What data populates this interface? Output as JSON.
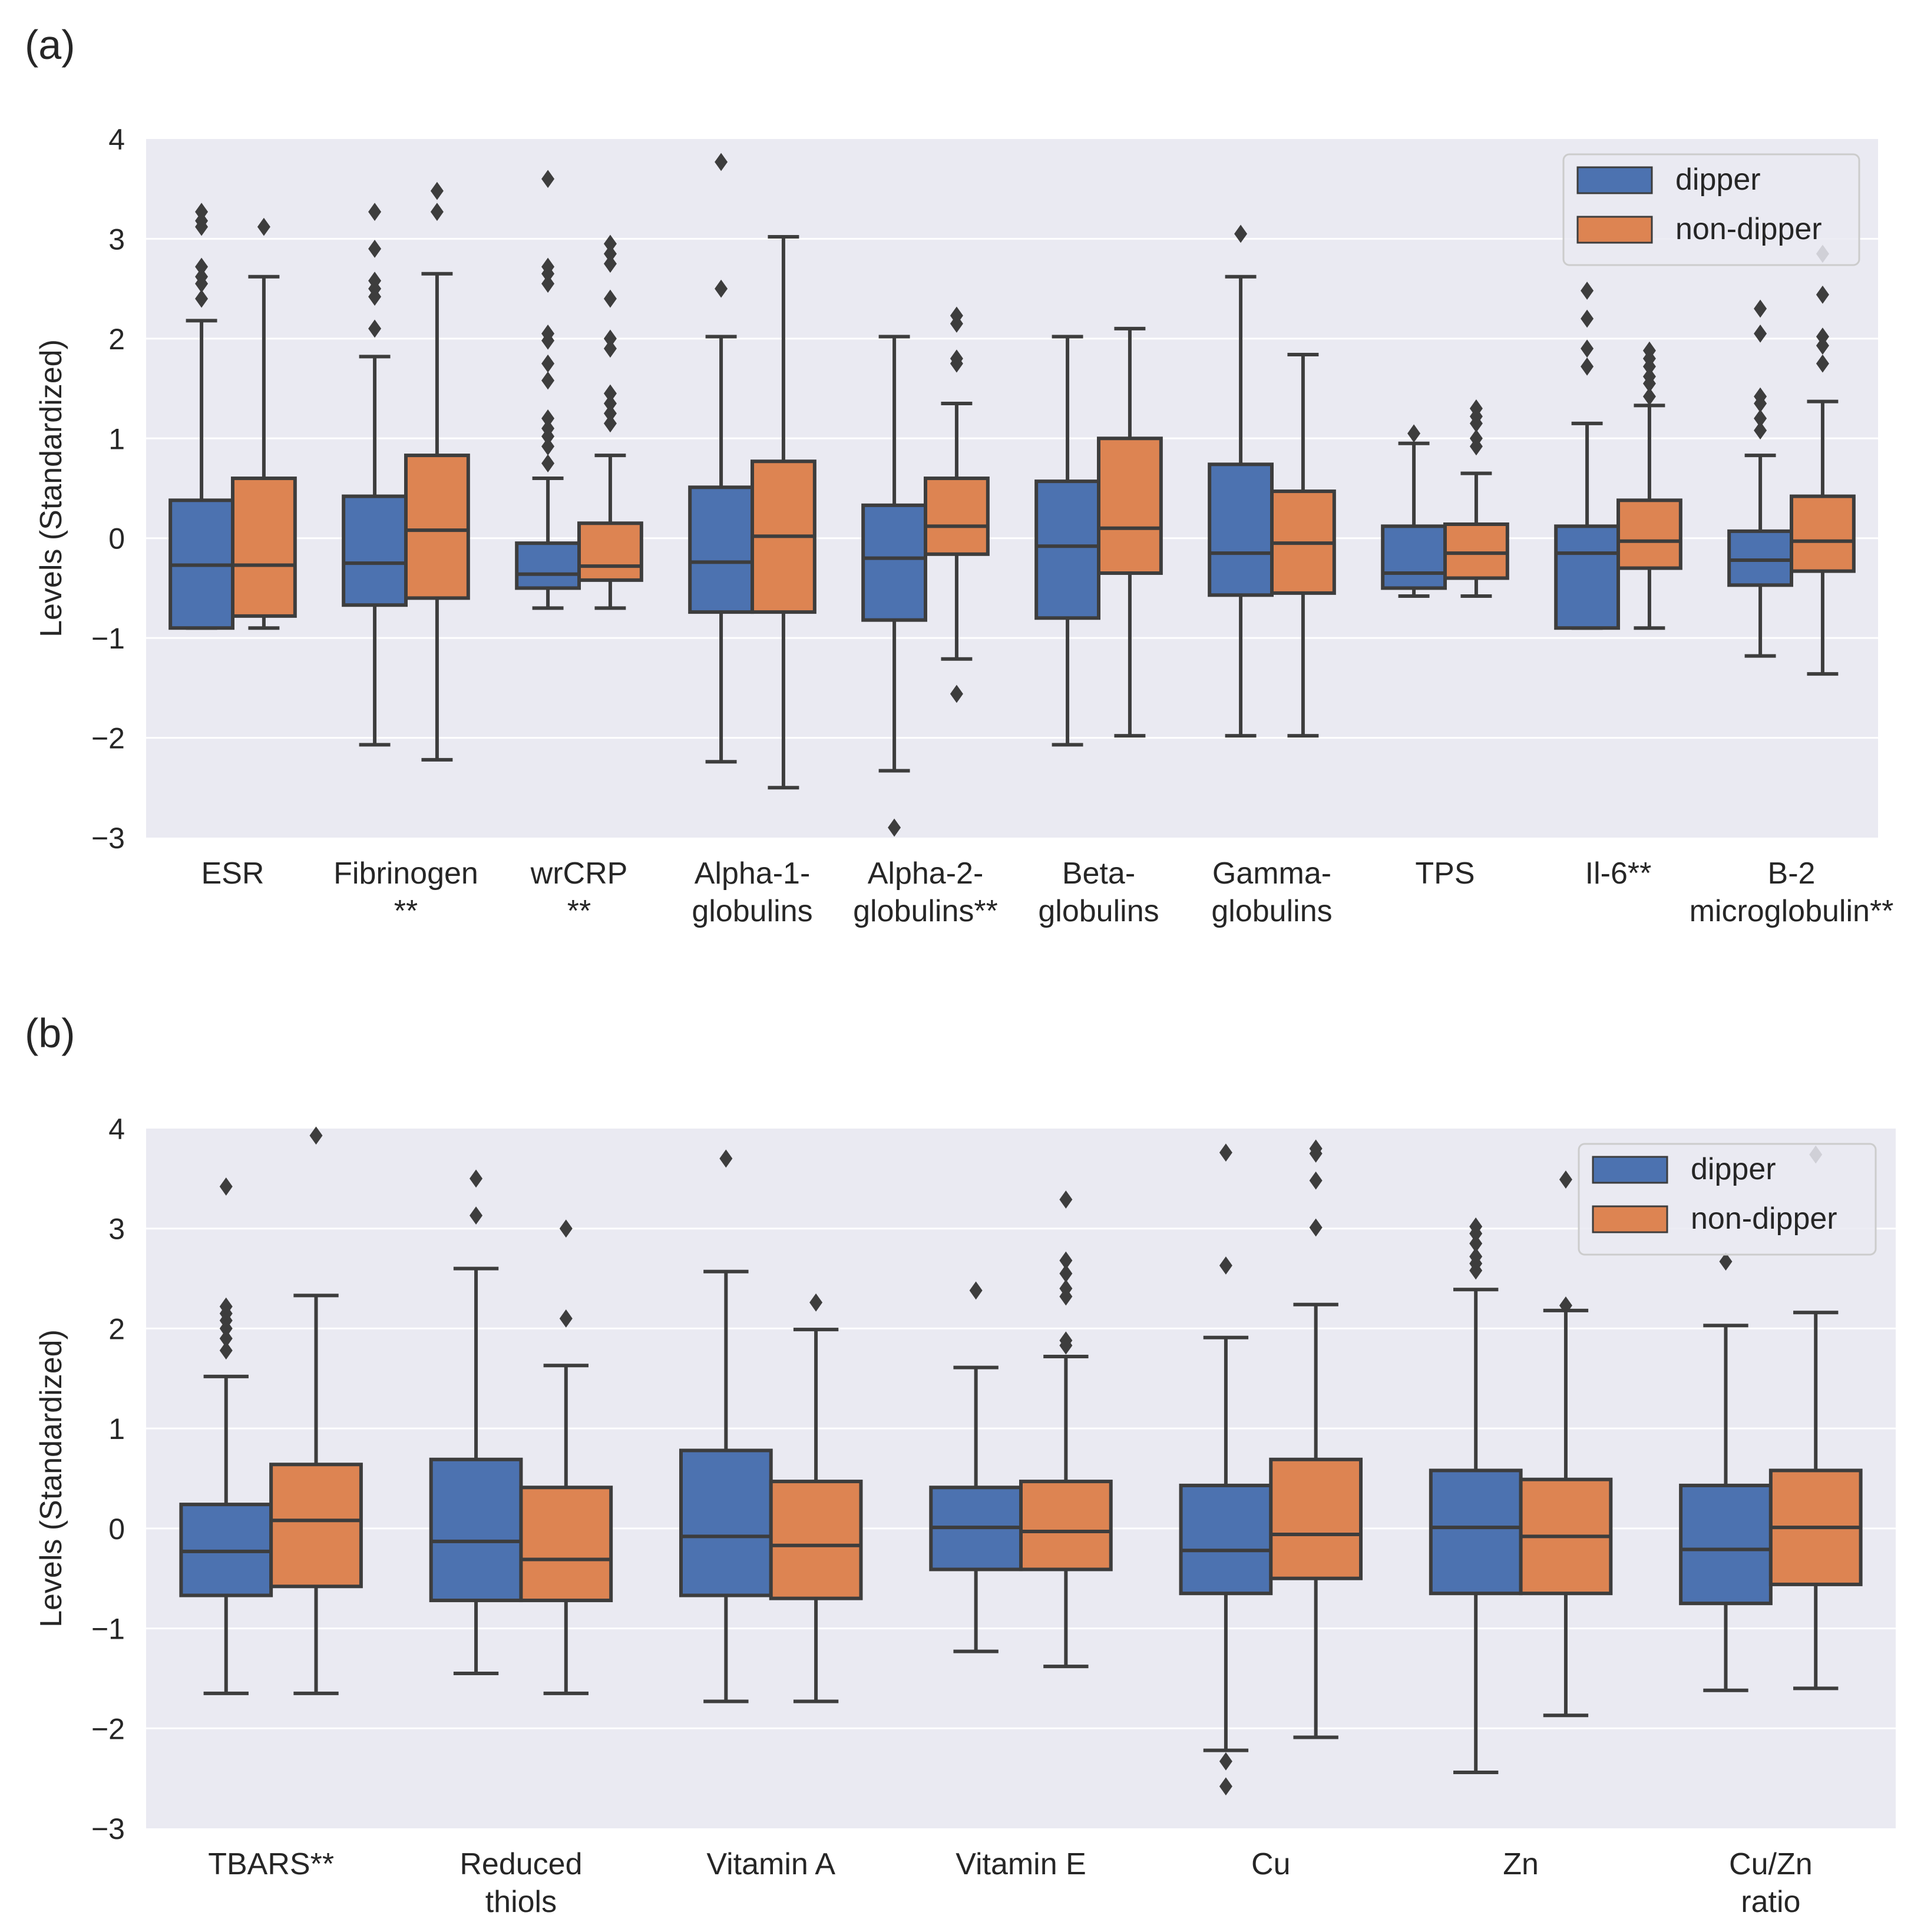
{
  "chart_data": [
    {
      "panel_label": "(a)",
      "type": "box",
      "ylabel": "Levels (Standardized)",
      "ylim": [
        -3,
        4
      ],
      "yticks": [
        4,
        3,
        2,
        1,
        0,
        -1,
        -2,
        -3
      ],
      "ytick_labels": [
        "4",
        "3",
        "2",
        "1",
        "0",
        "−1",
        "−2",
        "−3"
      ],
      "grid": true,
      "legend_position": "top-right",
      "legend": [
        {
          "label": "dipper",
          "color": "#4c72b0"
        },
        {
          "label": "non-dipper",
          "color": "#dd8452"
        }
      ],
      "categories": [
        {
          "lines": [
            "ESR"
          ],
          "dipper": {
            "q1": -0.9,
            "median": -0.27,
            "q3": 0.38,
            "whislo": -0.9,
            "whishi": 2.18,
            "fliers": [
              3.27,
              3.18,
              3.12,
              2.72,
              2.62,
              2.55,
              2.4
            ]
          },
          "non_dipper": {
            "q1": -0.78,
            "median": -0.27,
            "q3": 0.6,
            "whislo": -0.9,
            "whishi": 2.62,
            "fliers": [
              3.12
            ]
          }
        },
        {
          "lines": [
            "Fibrinogen",
            "**"
          ],
          "dipper": {
            "q1": -0.67,
            "median": -0.25,
            "q3": 0.42,
            "whislo": -2.07,
            "whishi": 1.82,
            "fliers": [
              3.27,
              2.9,
              2.58,
              2.5,
              2.42,
              2.1
            ]
          },
          "non_dipper": {
            "q1": -0.6,
            "median": 0.08,
            "q3": 0.83,
            "whislo": -2.22,
            "whishi": 2.65,
            "fliers": [
              3.48,
              3.27
            ]
          }
        },
        {
          "lines": [
            "wrCRP",
            "**"
          ],
          "dipper": {
            "q1": -0.5,
            "median": -0.36,
            "q3": -0.05,
            "whislo": -0.7,
            "whishi": 0.6,
            "fliers": [
              3.6,
              2.72,
              2.65,
              2.55,
              2.05,
              1.98,
              1.75,
              1.58,
              1.2,
              1.1,
              1.02,
              0.92,
              0.75
            ]
          },
          "non_dipper": {
            "q1": -0.42,
            "median": -0.28,
            "q3": 0.15,
            "whislo": -0.7,
            "whishi": 0.83,
            "fliers": [
              2.95,
              2.85,
              2.75,
              2.4,
              2.0,
              1.9,
              1.45,
              1.35,
              1.25,
              1.15
            ]
          }
        },
        {
          "lines": [
            "Alpha-1-",
            "globulins"
          ],
          "dipper": {
            "q1": -0.74,
            "median": -0.24,
            "q3": 0.51,
            "whislo": -2.24,
            "whishi": 2.02,
            "fliers": [
              3.77,
              2.5
            ]
          },
          "non_dipper": {
            "q1": -0.74,
            "median": 0.02,
            "q3": 0.77,
            "whislo": -2.5,
            "whishi": 3.02,
            "fliers": []
          }
        },
        {
          "lines": [
            "Alpha-2-",
            "globulins**"
          ],
          "dipper": {
            "q1": -0.82,
            "median": -0.2,
            "q3": 0.33,
            "whislo": -2.33,
            "whishi": 2.02,
            "fliers": [
              -2.9
            ]
          },
          "non_dipper": {
            "q1": -0.16,
            "median": 0.12,
            "q3": 0.6,
            "whislo": -1.21,
            "whishi": 1.35,
            "fliers": [
              2.23,
              2.15,
              1.8,
              1.75,
              -1.56
            ]
          }
        },
        {
          "lines": [
            "Beta-",
            "globulins"
          ],
          "dipper": {
            "q1": -0.8,
            "median": -0.08,
            "q3": 0.57,
            "whislo": -2.07,
            "whishi": 2.02,
            "fliers": []
          },
          "non_dipper": {
            "q1": -0.35,
            "median": 0.1,
            "q3": 1.0,
            "whislo": -1.98,
            "whishi": 2.1,
            "fliers": []
          }
        },
        {
          "lines": [
            "Gamma-",
            "globulins"
          ],
          "dipper": {
            "q1": -0.57,
            "median": -0.15,
            "q3": 0.74,
            "whislo": -1.98,
            "whishi": 2.62,
            "fliers": [
              3.05
            ]
          },
          "non_dipper": {
            "q1": -0.55,
            "median": -0.05,
            "q3": 0.47,
            "whislo": -1.98,
            "whishi": 1.84,
            "fliers": []
          }
        },
        {
          "lines": [
            "TPS"
          ],
          "dipper": {
            "q1": -0.5,
            "median": -0.35,
            "q3": 0.12,
            "whislo": -0.58,
            "whishi": 0.95,
            "fliers": [
              1.05
            ]
          },
          "non_dipper": {
            "q1": -0.4,
            "median": -0.15,
            "q3": 0.14,
            "whislo": -0.58,
            "whishi": 0.65,
            "fliers": [
              1.3,
              1.22,
              1.15,
              1.0,
              0.92
            ]
          }
        },
        {
          "lines": [
            "Il-6**"
          ],
          "dipper": {
            "q1": -0.9,
            "median": -0.15,
            "q3": 0.12,
            "whislo": -0.9,
            "whishi": 1.15,
            "fliers": [
              2.48,
              2.2,
              1.9,
              1.72
            ]
          },
          "non_dipper": {
            "q1": -0.3,
            "median": -0.03,
            "q3": 0.38,
            "whislo": -0.9,
            "whishi": 1.33,
            "fliers": [
              1.88,
              1.8,
              1.72,
              1.62,
              1.55,
              1.42
            ]
          }
        },
        {
          "lines": [
            "B-2",
            "microglobulin**"
          ],
          "dipper": {
            "q1": -0.47,
            "median": -0.22,
            "q3": 0.07,
            "whislo": -1.18,
            "whishi": 0.83,
            "fliers": [
              2.3,
              2.05,
              1.42,
              1.35,
              1.2,
              1.08
            ]
          },
          "non_dipper": {
            "q1": -0.33,
            "median": -0.03,
            "q3": 0.42,
            "whislo": -1.36,
            "whishi": 1.37,
            "fliers": [
              2.85,
              2.44,
              2.02,
              1.93,
              1.75
            ]
          }
        }
      ]
    },
    {
      "panel_label": "(b)",
      "type": "box",
      "ylabel": "Levels (Standardized)",
      "ylim": [
        -3,
        4
      ],
      "yticks": [
        4,
        3,
        2,
        1,
        0,
        -1,
        -2,
        -3
      ],
      "ytick_labels": [
        "4",
        "3",
        "2",
        "1",
        "0",
        "−1",
        "−2",
        "−3"
      ],
      "grid": true,
      "legend_position": "top-right",
      "legend": [
        {
          "label": "dipper",
          "color": "#4c72b0"
        },
        {
          "label": "non-dipper",
          "color": "#dd8452"
        }
      ],
      "categories": [
        {
          "lines": [
            "TBARS**"
          ],
          "dipper": {
            "q1": -0.67,
            "median": -0.23,
            "q3": 0.24,
            "whislo": -1.65,
            "whishi": 1.52,
            "fliers": [
              3.42,
              2.22,
              2.15,
              2.08,
              2.0,
              1.9,
              1.78
            ]
          },
          "non_dipper": {
            "q1": -0.58,
            "median": 0.08,
            "q3": 0.64,
            "whislo": -1.65,
            "whishi": 2.33,
            "fliers": [
              3.93
            ]
          }
        },
        {
          "lines": [
            "Reduced",
            "thiols"
          ],
          "dipper": {
            "q1": -0.72,
            "median": -0.13,
            "q3": 0.69,
            "whislo": -1.45,
            "whishi": 2.6,
            "fliers": [
              3.5,
              3.13
            ]
          },
          "non_dipper": {
            "q1": -0.72,
            "median": -0.31,
            "q3": 0.41,
            "whislo": -1.65,
            "whishi": 1.63,
            "fliers": [
              3.0,
              2.1
            ]
          }
        },
        {
          "lines": [
            "Vitamin A"
          ],
          "dipper": {
            "q1": -0.67,
            "median": -0.08,
            "q3": 0.78,
            "whislo": -1.73,
            "whishi": 2.57,
            "fliers": [
              3.7
            ]
          },
          "non_dipper": {
            "q1": -0.7,
            "median": -0.17,
            "q3": 0.47,
            "whislo": -1.73,
            "whishi": 1.99,
            "fliers": [
              2.26
            ]
          }
        },
        {
          "lines": [
            "Vitamin E"
          ],
          "dipper": {
            "q1": -0.41,
            "median": 0.01,
            "q3": 0.41,
            "whislo": -1.23,
            "whishi": 1.61,
            "fliers": [
              2.38
            ]
          },
          "non_dipper": {
            "q1": -0.41,
            "median": -0.03,
            "q3": 0.47,
            "whislo": -1.38,
            "whishi": 1.72,
            "fliers": [
              3.29,
              2.68,
              2.55,
              2.4,
              2.32,
              1.88,
              1.83
            ]
          }
        },
        {
          "lines": [
            "Cu"
          ],
          "dipper": {
            "q1": -0.65,
            "median": -0.22,
            "q3": 0.43,
            "whislo": -2.22,
            "whishi": 1.91,
            "fliers": [
              3.76,
              2.63,
              -2.33,
              -2.58
            ]
          },
          "non_dipper": {
            "q1": -0.5,
            "median": -0.06,
            "q3": 0.69,
            "whislo": -2.09,
            "whishi": 2.24,
            "fliers": [
              3.8,
              3.75,
              3.48,
              3.01
            ]
          }
        },
        {
          "lines": [
            "Zn"
          ],
          "dipper": {
            "q1": -0.65,
            "median": 0.01,
            "q3": 0.58,
            "whislo": -2.44,
            "whishi": 2.39,
            "fliers": [
              3.02,
              2.95,
              2.85,
              2.72,
              2.65,
              2.58
            ]
          },
          "non_dipper": {
            "q1": -0.65,
            "median": -0.08,
            "q3": 0.49,
            "whislo": -1.87,
            "whishi": 2.18,
            "fliers": [
              3.49,
              2.23
            ]
          }
        },
        {
          "lines": [
            "Cu/Zn",
            "ratio"
          ],
          "dipper": {
            "q1": -0.75,
            "median": -0.21,
            "q3": 0.43,
            "whislo": -1.62,
            "whishi": 2.03,
            "fliers": [
              2.67
            ]
          },
          "non_dipper": {
            "q1": -0.56,
            "median": 0.01,
            "q3": 0.58,
            "whislo": -1.6,
            "whishi": 2.16,
            "fliers": [
              3.74
            ]
          }
        }
      ]
    }
  ]
}
